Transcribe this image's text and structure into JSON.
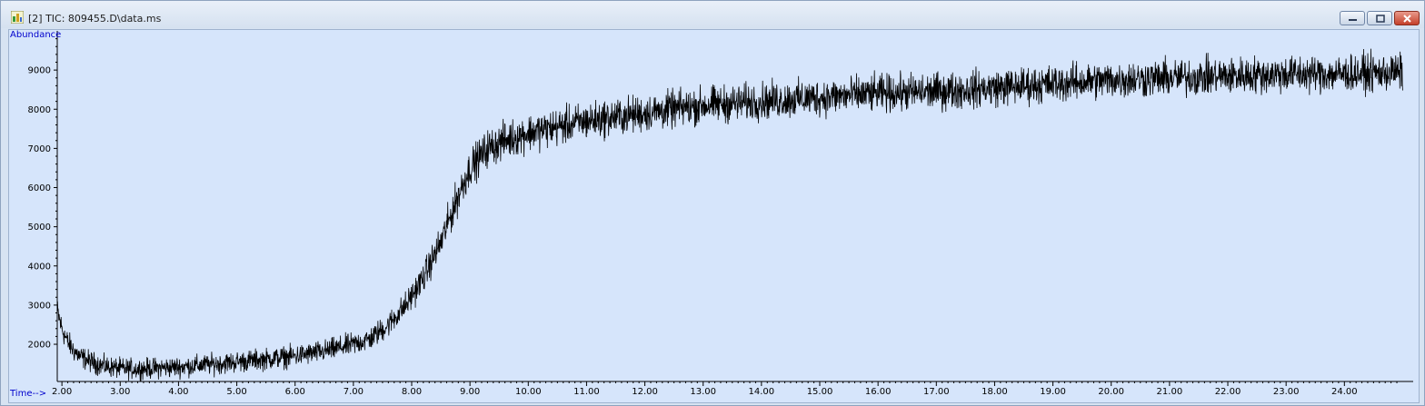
{
  "window": {
    "title": "[2] TIC: 809455.D\\data.ms",
    "icon": "chromatogram-icon",
    "controls": [
      "minimize",
      "maximize",
      "close"
    ]
  },
  "colors": {
    "axis_label": "#0000cc",
    "plot_bg": "#d6e5fb",
    "trace": "#000000",
    "close_button": "#c4402a"
  },
  "chart_data": {
    "type": "line",
    "title": "",
    "ylabel": "Abundance",
    "xlabel": "Time-->",
    "xlim": [
      1.92,
      25.18
    ],
    "ylim": [
      1050,
      10000
    ],
    "x_ticks": [
      "2.00",
      "3.00",
      "4.00",
      "5.00",
      "6.00",
      "7.00",
      "8.00",
      "9.00",
      "10.00",
      "11.00",
      "12.00",
      "13.00",
      "14.00",
      "15.00",
      "16.00",
      "17.00",
      "18.00",
      "19.00",
      "20.00",
      "21.00",
      "22.00",
      "23.00",
      "24.00"
    ],
    "y_ticks": [
      "2000",
      "3000",
      "4000",
      "5000",
      "6000",
      "7000",
      "8000",
      "9000"
    ],
    "grid": false,
    "legend": "none",
    "series": [
      {
        "x": [
          1.92,
          2.0,
          2.1,
          2.2,
          2.3,
          2.5,
          2.7,
          3.0,
          3.3,
          3.6,
          4.0,
          4.5,
          5.0,
          5.5,
          6.0,
          6.5,
          7.0,
          7.3,
          7.6,
          7.9,
          8.2,
          8.5,
          8.8,
          9.0,
          9.3,
          9.6,
          10.0,
          10.5,
          11.0,
          11.5,
          12.0,
          12.5,
          13.0,
          14.0,
          15.0,
          16.0,
          17.0,
          18.0,
          19.0,
          20.0,
          21.0,
          22.0,
          23.0,
          24.0,
          25.0
        ],
        "values": [
          2850,
          2400,
          2050,
          1850,
          1700,
          1550,
          1450,
          1380,
          1370,
          1390,
          1420,
          1480,
          1550,
          1620,
          1700,
          1820,
          2000,
          2150,
          2500,
          3000,
          3700,
          4600,
          5800,
          6500,
          7000,
          7200,
          7400,
          7550,
          7700,
          7800,
          7900,
          8000,
          8100,
          8200,
          8300,
          8400,
          8450,
          8550,
          8650,
          8750,
          8800,
          8850,
          8900,
          8900,
          8950
        ],
        "noise": 420
      }
    ]
  }
}
